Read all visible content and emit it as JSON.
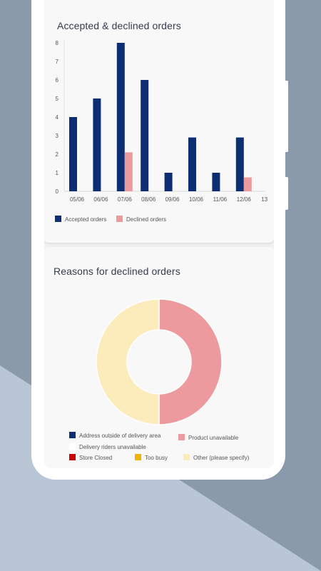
{
  "colors": {
    "accepted": "#0d2e73",
    "declined": "#ec9a9e",
    "address_outside": "#0d2e73",
    "product_unavailable": "#ec9a9e",
    "delivery_riders": "#ffffff",
    "store_closed": "#cc0000",
    "too_busy": "#f0b400",
    "other": "#fcebbb"
  },
  "bar_card": {
    "title": "Accepted & declined orders",
    "legend": {
      "accepted": "Accepted orders",
      "declined": "Declined orders"
    }
  },
  "donut_card": {
    "title": "Reasons for declined orders",
    "legend": {
      "address_outside": "Address outside of delivery area",
      "product_unavailable": "Product unavailable",
      "delivery_riders": "Delivery riders unavailable",
      "store_closed": "Store Closed",
      "too_busy": "Too busy",
      "other": "Other (please specify)"
    }
  },
  "chart_data": [
    {
      "type": "bar",
      "title": "Accepted & declined orders",
      "categories": [
        "05/06",
        "06/06",
        "07/06",
        "08/06",
        "09/06",
        "10/06",
        "11/06",
        "12/06",
        "13"
      ],
      "series": [
        {
          "name": "Accepted orders",
          "values": [
            4,
            5,
            8,
            6,
            1,
            2.9,
            1,
            2.9,
            0
          ]
        },
        {
          "name": "Declined orders",
          "values": [
            0,
            0,
            2.1,
            0,
            0,
            0,
            0,
            0.75,
            0
          ]
        }
      ],
      "ylim": [
        0,
        8
      ],
      "yticks": [
        0,
        1,
        2,
        3,
        4,
        5,
        6,
        7,
        8
      ],
      "legend": "bottom-left"
    },
    {
      "type": "pie",
      "title": "Reasons for declined orders",
      "labels": [
        "Address outside of delivery area",
        "Product unavailable",
        "Delivery riders unavailable",
        "Store Closed",
        "Too busy",
        "Other (please specify)"
      ],
      "values": [
        0,
        1,
        0,
        0,
        0,
        1
      ],
      "legend": "bottom"
    }
  ]
}
